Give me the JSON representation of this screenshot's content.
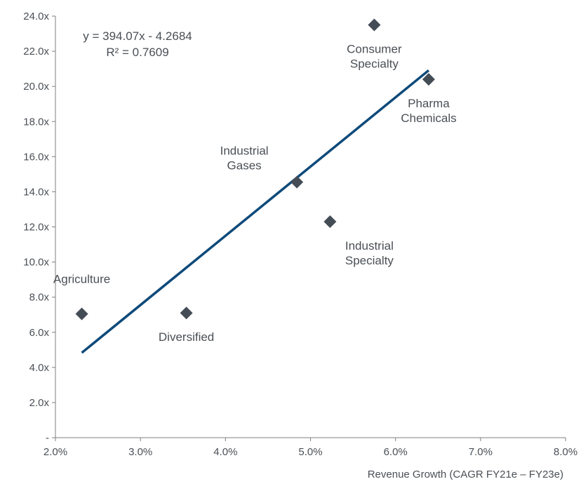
{
  "chart_data": {
    "type": "scatter",
    "xlim": [
      0.02,
      0.08
    ],
    "ylim": [
      0,
      24
    ],
    "x_ticks": [
      {
        "value": 0.02,
        "label": "2.0%"
      },
      {
        "value": 0.03,
        "label": "3.0%"
      },
      {
        "value": 0.04,
        "label": "4.0%"
      },
      {
        "value": 0.05,
        "label": "5.0%"
      },
      {
        "value": 0.06,
        "label": "6.0%"
      },
      {
        "value": 0.07,
        "label": "7.0%"
      },
      {
        "value": 0.08,
        "label": "8.0%"
      }
    ],
    "y_ticks": [
      {
        "value": 0,
        "label": "-"
      },
      {
        "value": 2,
        "label": "2.0x"
      },
      {
        "value": 4,
        "label": "4.0x"
      },
      {
        "value": 6,
        "label": "6.0x"
      },
      {
        "value": 8,
        "label": "8.0x"
      },
      {
        "value": 10,
        "label": "10.0x"
      },
      {
        "value": 12,
        "label": "12.0x"
      },
      {
        "value": 14,
        "label": "14.0x"
      },
      {
        "value": 16,
        "label": "16.0x"
      },
      {
        "value": 18,
        "label": "18.0x"
      },
      {
        "value": 20,
        "label": "20.0x"
      },
      {
        "value": 22,
        "label": "22.0x"
      },
      {
        "value": 24,
        "label": "24.0x"
      }
    ],
    "xlabel": "Revenue Growth (CAGR FY21e – FY23e)",
    "ylabel": "",
    "grid": false,
    "marker": "diamond",
    "marker_color": "#444c56",
    "points": [
      {
        "label": [
          "Agriculture"
        ],
        "x": 0.0231,
        "y": 7.05,
        "label_pos": "above"
      },
      {
        "label": [
          "Diversified"
        ],
        "x": 0.0354,
        "y": 7.1,
        "label_pos": "below"
      },
      {
        "label": [
          "Industrial",
          "Gases"
        ],
        "x": 0.0484,
        "y": 14.55,
        "label_pos": "upper-left"
      },
      {
        "label": [
          "Industrial",
          "Specialty"
        ],
        "x": 0.0523,
        "y": 12.3,
        "label_pos": "lower-right"
      },
      {
        "label": [
          "Consumer",
          "Specialty"
        ],
        "x": 0.0575,
        "y": 23.5,
        "label_pos": "below"
      },
      {
        "label": [
          "Pharma",
          "Chemicals"
        ],
        "x": 0.0639,
        "y": 20.4,
        "label_pos": "below"
      }
    ],
    "trendline": {
      "type": "linear",
      "slope": 394.07,
      "intercept": -4.2684,
      "x_range": [
        0.0231,
        0.0639
      ],
      "color": "#0e4a7a",
      "equation_text": "y = 394.07x - 4.2684",
      "r2_text": "R² = 0.7609"
    }
  }
}
